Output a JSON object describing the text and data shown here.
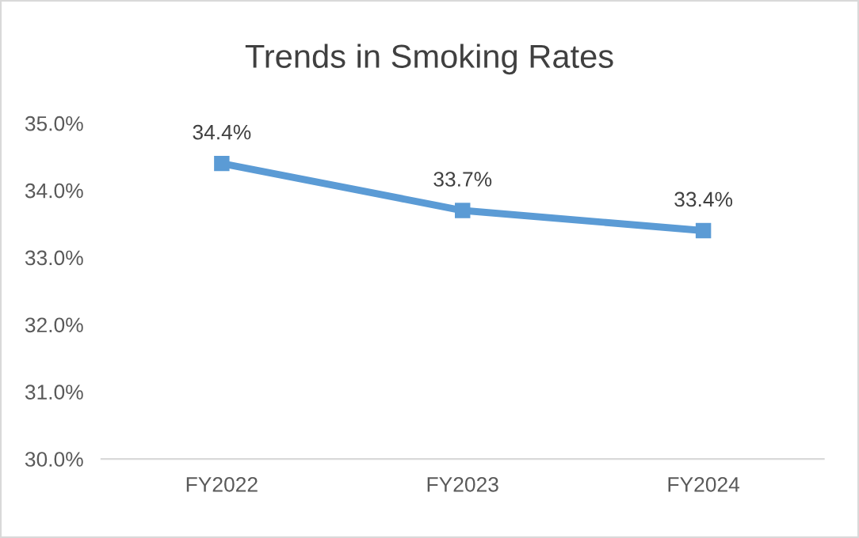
{
  "chart_data": {
    "type": "line",
    "title": "Trends in Smoking Rates",
    "categories": [
      "FY2022",
      "FY2023",
      "FY2024"
    ],
    "series": [
      {
        "color": "#5b9bd5",
        "values": [
          34.4,
          33.7,
          33.4
        ],
        "value_labels": [
          "34.4%",
          "33.7%",
          "33.4%"
        ]
      }
    ],
    "ylim": [
      30,
      35
    ],
    "yticks": [
      {
        "value": 30,
        "label": "30.0%"
      },
      {
        "value": 31,
        "label": "31.0%"
      },
      {
        "value": 32,
        "label": "32.0%"
      },
      {
        "value": 33,
        "label": "33.0%"
      },
      {
        "value": 34,
        "label": "34.0%"
      },
      {
        "value": 35,
        "label": "35.0%"
      }
    ],
    "grid": false,
    "legend": false,
    "marker": "square",
    "line_style": "solid"
  }
}
